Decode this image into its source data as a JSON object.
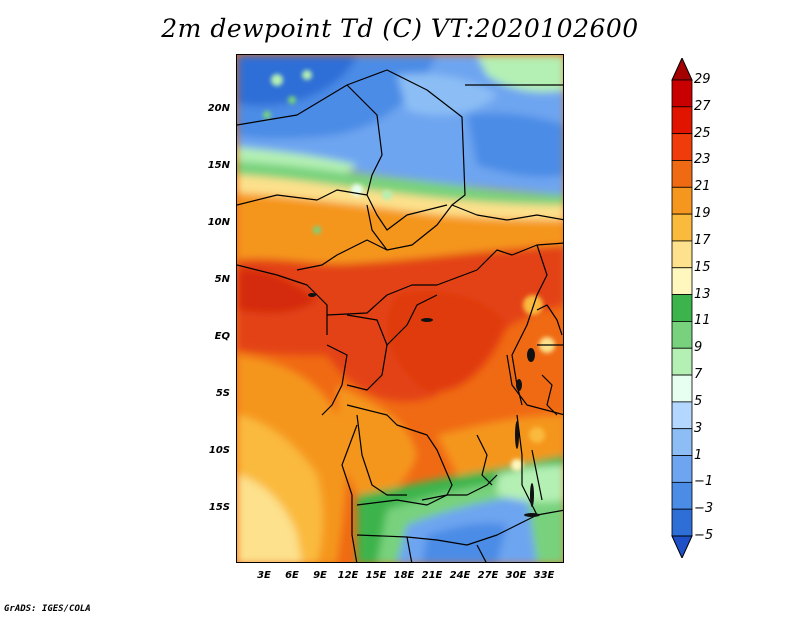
{
  "title": "2m dewpoint Td (C) VT:2020102600",
  "credit": "GrADS: IGES/COLA",
  "lat_labels": [
    "20N",
    "15N",
    "10N",
    "5N",
    "EQ",
    "5S",
    "10S",
    "15S"
  ],
  "lon_labels": [
    "3E",
    "6E",
    "9E",
    "12E",
    "15E",
    "18E",
    "21E",
    "24E",
    "27E",
    "30E",
    "33E"
  ],
  "colorbar": {
    "labels": [
      "29",
      "27",
      "25",
      "23",
      "21",
      "19",
      "17",
      "15",
      "13",
      "11",
      "9",
      "7",
      "5",
      "3",
      "1",
      "−1",
      "−3",
      "−5"
    ],
    "colors": [
      "#a50000",
      "#c80000",
      "#e11400",
      "#f03c0a",
      "#f06a14",
      "#f5961e",
      "#faba3c",
      "#fde18c",
      "#fff7be",
      "#3cb44b",
      "#78d27d",
      "#b4f0b4",
      "#e6fff0",
      "#b4d7ff",
      "#8cbef5",
      "#6ea5f0",
      "#4b8ce6",
      "#2d6ed7",
      "#1e50c8"
    ]
  }
}
